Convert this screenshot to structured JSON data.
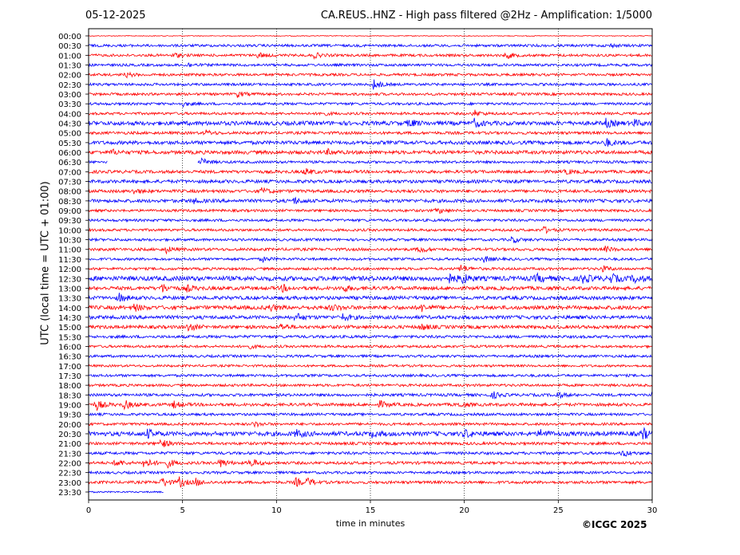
{
  "header": {
    "date": "05-12-2025",
    "title": "CA.REUS..HNZ - High pass filtered @2Hz - Amplification: 1/5000"
  },
  "footer": {
    "copyright": "©ICGC 2025"
  },
  "chart_data": {
    "type": "line",
    "title": "CA.REUS..HNZ - High pass filtered @2Hz - Amplification: 1/5000",
    "xlabel": "time in minutes",
    "ylabel": "UTC (local time = UTC + 01:00)",
    "xlim": [
      0,
      30
    ],
    "xticks": [
      "0",
      "5",
      "10",
      "15",
      "20",
      "25",
      "30"
    ],
    "grid": "vertical dotted every 5 minutes",
    "colors": [
      "#ff0000",
      "#0000ff"
    ],
    "rows": [
      "00:00",
      "00:30",
      "01:00",
      "01:30",
      "02:00",
      "02:30",
      "03:00",
      "03:30",
      "04:00",
      "04:30",
      "05:00",
      "05:30",
      "06:00",
      "06:30",
      "07:00",
      "07:30",
      "08:00",
      "08:30",
      "09:00",
      "09:30",
      "10:00",
      "10:30",
      "11:00",
      "11:30",
      "12:00",
      "12:30",
      "13:00",
      "13:30",
      "14:00",
      "14:30",
      "15:00",
      "15:30",
      "16:00",
      "16:30",
      "17:00",
      "17:30",
      "18:00",
      "18:30",
      "19:00",
      "19:30",
      "20:00",
      "20:30",
      "21:00",
      "21:30",
      "22:00",
      "22:30",
      "23:00",
      "23:30"
    ],
    "noise": [
      0.3,
      1,
      1,
      1,
      1,
      1,
      1,
      1,
      1,
      1.6,
      1.1,
      1.4,
      1.4,
      1,
      1.2,
      1.3,
      1.2,
      1.3,
      1,
      1,
      1,
      1,
      1.1,
      1,
      1,
      1.8,
      1.4,
      1.4,
      1.5,
      1.4,
      1.3,
      1.1,
      1,
      1,
      0.9,
      1,
      1,
      1.1,
      1.2,
      1,
      1,
      1.7,
      1.1,
      1.1,
      1.1,
      1,
      1.1,
      0.6
    ],
    "last_trace_end_minute": 4,
    "gap_06_30": [
      1,
      5.8
    ],
    "events": [
      [
        1,
        27.7,
        2
      ],
      [
        2,
        4.5,
        3
      ],
      [
        2,
        9,
        3.5
      ],
      [
        2,
        12,
        3
      ],
      [
        2,
        22.2,
        4
      ],
      [
        3,
        5.2,
        3
      ],
      [
        4,
        2,
        2.5
      ],
      [
        5,
        15.1,
        7
      ],
      [
        6,
        7.9,
        3.5
      ],
      [
        7,
        5,
        2.5
      ],
      [
        8,
        12.3,
        3
      ],
      [
        8,
        20.5,
        4
      ],
      [
        9,
        17,
        5
      ],
      [
        9,
        20.5,
        5
      ],
      [
        9,
        27.5,
        5
      ],
      [
        9,
        29,
        4
      ],
      [
        10,
        6.2,
        3
      ],
      [
        11,
        27.5,
        5
      ],
      [
        12,
        1.2,
        3
      ],
      [
        12,
        12.7,
        3
      ],
      [
        13,
        4.4,
        14
      ],
      [
        13,
        6,
        4
      ],
      [
        14,
        11.5,
        4
      ],
      [
        14,
        25.4,
        3
      ],
      [
        16,
        2.4,
        3
      ],
      [
        16,
        9.2,
        4
      ],
      [
        17,
        10.9,
        4
      ],
      [
        17,
        5.5,
        3
      ],
      [
        18,
        18.5,
        4
      ],
      [
        20,
        24.2,
        4
      ],
      [
        21,
        22.5,
        4
      ],
      [
        22,
        4.1,
        4
      ],
      [
        22,
        17.6,
        4
      ],
      [
        22,
        27.5,
        3
      ],
      [
        23,
        9.2,
        3
      ],
      [
        23,
        21,
        4
      ],
      [
        24,
        19.8,
        5
      ],
      [
        24,
        27.3,
        4
      ],
      [
        25,
        19.1,
        6
      ],
      [
        25,
        19.8,
        6
      ],
      [
        25,
        23.8,
        5
      ],
      [
        25,
        26.3,
        5
      ],
      [
        25,
        27.8,
        5
      ],
      [
        25,
        29,
        5
      ],
      [
        26,
        3.9,
        5
      ],
      [
        26,
        5.2,
        4
      ],
      [
        26,
        10.3,
        4
      ],
      [
        26,
        13.5,
        4
      ],
      [
        27,
        1.6,
        5
      ],
      [
        28,
        2.4,
        4
      ],
      [
        28,
        9.6,
        4
      ],
      [
        28,
        12.9,
        4
      ],
      [
        28,
        17.7,
        4
      ],
      [
        29,
        11,
        5
      ],
      [
        29,
        13.5,
        4
      ],
      [
        30,
        5.3,
        5
      ],
      [
        30,
        10.2,
        4
      ],
      [
        30,
        17.7,
        4
      ],
      [
        32,
        8.4,
        3
      ],
      [
        37,
        21.5,
        4
      ],
      [
        37,
        24.9,
        4
      ],
      [
        37,
        29.9,
        5
      ],
      [
        38,
        0.4,
        6
      ],
      [
        38,
        1.9,
        5
      ],
      [
        38,
        4.5,
        4
      ],
      [
        38,
        15.5,
        4
      ],
      [
        38,
        19.7,
        3
      ],
      [
        40,
        8.8,
        3
      ],
      [
        41,
        3.1,
        5
      ],
      [
        41,
        11,
        5
      ],
      [
        41,
        15,
        4
      ],
      [
        41,
        20,
        5
      ],
      [
        41,
        24,
        5
      ],
      [
        41,
        29.5,
        6
      ],
      [
        42,
        3.8,
        6
      ],
      [
        43,
        28.4,
        4
      ],
      [
        44,
        1.4,
        5
      ],
      [
        44,
        2.9,
        7
      ],
      [
        44,
        4.2,
        5
      ],
      [
        44,
        7,
        5
      ],
      [
        44,
        8.6,
        6
      ],
      [
        46,
        3.9,
        6
      ],
      [
        46,
        4.8,
        6
      ],
      [
        46,
        5.7,
        4
      ],
      [
        46,
        11,
        5
      ],
      [
        46,
        11.6,
        5
      ]
    ]
  }
}
